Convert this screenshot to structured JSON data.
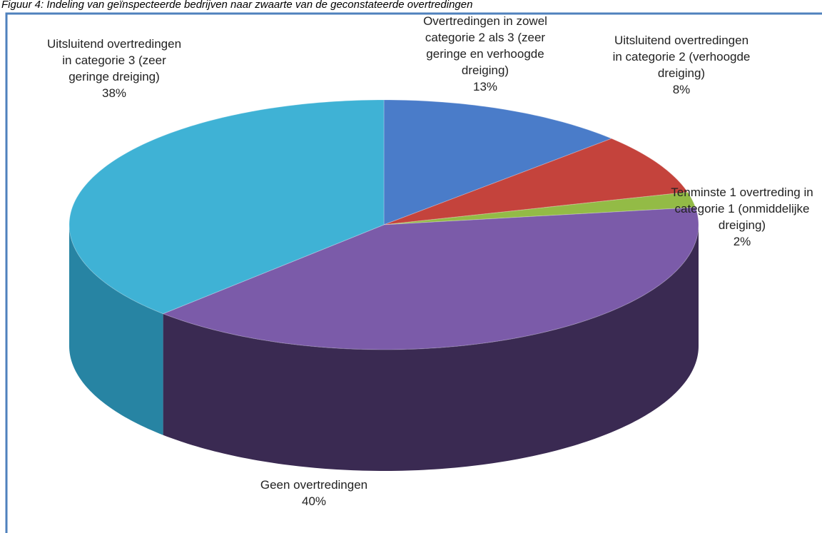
{
  "chart_data": {
    "type": "pie3d",
    "title": "Figuur 4: Indeling van geïnspecteerde bedrijven naar zwaarte van de geconstateerde overtredingen",
    "categories": [
      "Overtredingen in zowel categorie 2 als 3 (zeer geringe en verhoogde dreiging)",
      "Uitsluitend overtredingen in categorie 2 (verhoogde dreiging)",
      "Tenminste 1 overtreding in categorie 1 (onmiddelijke dreiging)",
      "Geen overtredingen",
      "Uitsluitend overtredingen in categorie 3 (zeer geringe dreiging)"
    ],
    "values": [
      13,
      8,
      2,
      40,
      38
    ],
    "value_labels": [
      "13%",
      "8%",
      "2%",
      "40%",
      "38%"
    ],
    "colors": [
      "#4a7cc9",
      "#c4433c",
      "#93bb46",
      "#7b5ba9",
      "#3fb2d5"
    ],
    "side_colors": [
      "#2c4f86",
      "#7e2622",
      "#5a7a25",
      "#3a2a52",
      "#2784a3"
    ]
  }
}
